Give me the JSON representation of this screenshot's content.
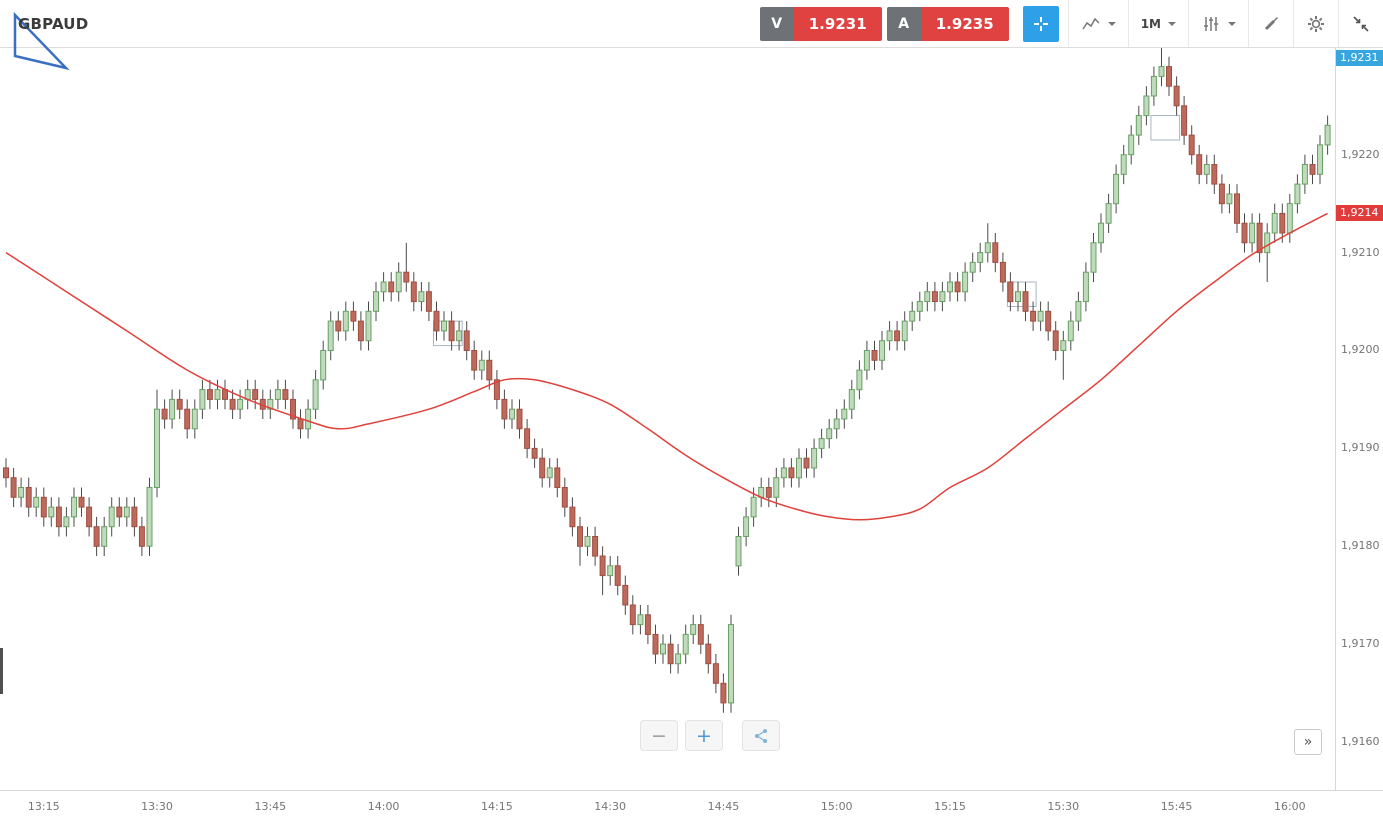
{
  "toolbar": {
    "symbol": "GBPAUD",
    "sell": {
      "label": "V",
      "price": "1.9231"
    },
    "buy": {
      "label": "A",
      "price": "1.9235"
    },
    "timeframe": "1M",
    "icons": {
      "crosshair": "crosshair",
      "chart_type": "line-chart",
      "indicators": "sliders",
      "drawing": "brush",
      "settings": "gear",
      "collapse": "collapse-arrows",
      "logo": "triangle-logo"
    }
  },
  "controls": {
    "zoom_out": "−",
    "zoom_in": "+",
    "more": "»"
  },
  "chart_data": {
    "type": "candlestick",
    "symbol": "GBPAUD",
    "interval": "1M",
    "start_time": "13:10",
    "interval_minutes": 1,
    "ylim": [
      1.91551,
      1.92309
    ],
    "grid": false,
    "colors": {
      "up_fill": "#c0dabc",
      "up_stroke": "#699f65",
      "down_fill": "#bd695c",
      "down_stroke": "#9d4f44",
      "wick": "#4a4a4a"
    },
    "y_ticks": [
      {
        "v": 1.922,
        "label": "1,9220"
      },
      {
        "v": 1.921,
        "label": "1,9210"
      },
      {
        "v": 1.92,
        "label": "1,9200"
      },
      {
        "v": 1.919,
        "label": "1,9190"
      },
      {
        "v": 1.918,
        "label": "1,9180"
      },
      {
        "v": 1.917,
        "label": "1,9170"
      },
      {
        "v": 1.916,
        "label": "1,9160"
      }
    ],
    "x_ticks": [
      {
        "i": 5,
        "label": "13:15"
      },
      {
        "i": 20,
        "label": "13:30"
      },
      {
        "i": 35,
        "label": "13:45"
      },
      {
        "i": 50,
        "label": "14:00"
      },
      {
        "i": 65,
        "label": "14:15"
      },
      {
        "i": 80,
        "label": "14:30"
      },
      {
        "i": 95,
        "label": "14:45"
      },
      {
        "i": 110,
        "label": "15:00"
      },
      {
        "i": 125,
        "label": "15:15"
      },
      {
        "i": 140,
        "label": "15:30"
      },
      {
        "i": 155,
        "label": "15:45"
      },
      {
        "i": 170,
        "label": "16:00"
      }
    ],
    "last_price_label": {
      "v": 1.9231,
      "label": "1,9231",
      "bg": "#36a6df"
    },
    "ma_price_label": {
      "v": 1.9214,
      "label": "1,9214",
      "bg": "#e23b3b"
    },
    "pattern_boxes": [
      {
        "i0": 57,
        "i1": 60,
        "top": 1.9203,
        "bottom": 1.92005
      },
      {
        "i0": 133,
        "i1": 136,
        "top": 1.9207,
        "bottom": 1.92045
      },
      {
        "i0": 152,
        "i1": 155,
        "top": 1.9224,
        "bottom": 1.92215
      }
    ],
    "ma_line": {
      "color": "#e0413a",
      "points": [
        [
          0,
          1.921
        ],
        [
          8,
          1.9206
        ],
        [
          16,
          1.9202
        ],
        [
          24,
          1.9198
        ],
        [
          32,
          1.9195
        ],
        [
          40,
          1.91928
        ],
        [
          44,
          1.9192
        ],
        [
          48,
          1.91925
        ],
        [
          56,
          1.9194
        ],
        [
          62,
          1.91958
        ],
        [
          66,
          1.9197
        ],
        [
          70,
          1.9197
        ],
        [
          75,
          1.9196
        ],
        [
          80,
          1.91945
        ],
        [
          85,
          1.9192
        ],
        [
          90,
          1.91893
        ],
        [
          95,
          1.9187
        ],
        [
          100,
          1.9185
        ],
        [
          105,
          1.91837
        ],
        [
          109,
          1.9183
        ],
        [
          113,
          1.91827
        ],
        [
          117,
          1.9183
        ],
        [
          121,
          1.91838
        ],
        [
          125,
          1.9186
        ],
        [
          130,
          1.9188
        ],
        [
          135,
          1.9191
        ],
        [
          140,
          1.9194
        ],
        [
          145,
          1.9197
        ],
        [
          150,
          1.92005
        ],
        [
          155,
          1.9204
        ],
        [
          160,
          1.9207
        ],
        [
          165,
          1.92098
        ],
        [
          170,
          1.9212
        ],
        [
          175,
          1.9214
        ]
      ]
    },
    "candles": [
      [
        1.9188,
        1.9189,
        1.9186,
        1.9187
      ],
      [
        1.9187,
        1.9188,
        1.9184,
        1.9185
      ],
      [
        1.9185,
        1.9187,
        1.9184,
        1.9186
      ],
      [
        1.9186,
        1.9187,
        1.9183,
        1.9184
      ],
      [
        1.9184,
        1.9186,
        1.9183,
        1.9185
      ],
      [
        1.9185,
        1.9186,
        1.9182,
        1.9183
      ],
      [
        1.9183,
        1.9185,
        1.9182,
        1.9184
      ],
      [
        1.9184,
        1.9185,
        1.9181,
        1.9182
      ],
      [
        1.9182,
        1.9184,
        1.9181,
        1.9183
      ],
      [
        1.9183,
        1.9186,
        1.9182,
        1.9185
      ],
      [
        1.9185,
        1.9186,
        1.9183,
        1.9184
      ],
      [
        1.9184,
        1.9185,
        1.9181,
        1.9182
      ],
      [
        1.9182,
        1.9183,
        1.9179,
        1.918
      ],
      [
        1.918,
        1.9183,
        1.9179,
        1.9182
      ],
      [
        1.9182,
        1.9185,
        1.9181,
        1.9184
      ],
      [
        1.9184,
        1.9185,
        1.9182,
        1.9183
      ],
      [
        1.9183,
        1.9185,
        1.9182,
        1.9184
      ],
      [
        1.9184,
        1.9185,
        1.9181,
        1.9182
      ],
      [
        1.9182,
        1.9183,
        1.9179,
        1.918
      ],
      [
        1.918,
        1.9187,
        1.9179,
        1.9186
      ],
      [
        1.9186,
        1.9196,
        1.9185,
        1.9194
      ],
      [
        1.9194,
        1.9195,
        1.9192,
        1.9193
      ],
      [
        1.9193,
        1.9196,
        1.9192,
        1.9195
      ],
      [
        1.9195,
        1.9196,
        1.9193,
        1.9194
      ],
      [
        1.9194,
        1.9195,
        1.9191,
        1.9192
      ],
      [
        1.9192,
        1.9195,
        1.9191,
        1.9194
      ],
      [
        1.9194,
        1.9197,
        1.9193,
        1.9196
      ],
      [
        1.9196,
        1.9197,
        1.9194,
        1.9195
      ],
      [
        1.9195,
        1.9197,
        1.9194,
        1.9196
      ],
      [
        1.9196,
        1.9197,
        1.9194,
        1.9195
      ],
      [
        1.9195,
        1.9196,
        1.9193,
        1.9194
      ],
      [
        1.9194,
        1.9196,
        1.9193,
        1.9195
      ],
      [
        1.9195,
        1.9197,
        1.9194,
        1.9196
      ],
      [
        1.9196,
        1.9197,
        1.9194,
        1.9195
      ],
      [
        1.9195,
        1.9196,
        1.9193,
        1.9194
      ],
      [
        1.9194,
        1.9196,
        1.9193,
        1.9195
      ],
      [
        1.9195,
        1.9197,
        1.9194,
        1.9196
      ],
      [
        1.9196,
        1.9197,
        1.9194,
        1.9195
      ],
      [
        1.9195,
        1.9196,
        1.9192,
        1.9193
      ],
      [
        1.9193,
        1.9194,
        1.9191,
        1.9192
      ],
      [
        1.9192,
        1.9195,
        1.9191,
        1.9194
      ],
      [
        1.9194,
        1.9198,
        1.9193,
        1.9197
      ],
      [
        1.9197,
        1.9201,
        1.9196,
        1.92
      ],
      [
        1.92,
        1.9204,
        1.9199,
        1.9203
      ],
      [
        1.9203,
        1.9204,
        1.9201,
        1.9202
      ],
      [
        1.9202,
        1.9205,
        1.9201,
        1.9204
      ],
      [
        1.9204,
        1.9205,
        1.9202,
        1.9203
      ],
      [
        1.9203,
        1.9204,
        1.92,
        1.9201
      ],
      [
        1.9201,
        1.9205,
        1.92,
        1.9204
      ],
      [
        1.9204,
        1.9207,
        1.9203,
        1.9206
      ],
      [
        1.9206,
        1.9208,
        1.9205,
        1.9207
      ],
      [
        1.9207,
        1.9208,
        1.9205,
        1.9206
      ],
      [
        1.9206,
        1.9209,
        1.9205,
        1.9208
      ],
      [
        1.9208,
        1.9211,
        1.9206,
        1.9207
      ],
      [
        1.9207,
        1.9208,
        1.9204,
        1.9205
      ],
      [
        1.9205,
        1.9207,
        1.9204,
        1.9206
      ],
      [
        1.9206,
        1.9207,
        1.9203,
        1.9204
      ],
      [
        1.9204,
        1.9205,
        1.9201,
        1.9202
      ],
      [
        1.9202,
        1.9204,
        1.9201,
        1.9203
      ],
      [
        1.9203,
        1.9204,
        1.92,
        1.9201
      ],
      [
        1.9201,
        1.9203,
        1.92,
        1.9202
      ],
      [
        1.9202,
        1.9203,
        1.9199,
        1.92
      ],
      [
        1.92,
        1.9201,
        1.9197,
        1.9198
      ],
      [
        1.9198,
        1.92,
        1.9197,
        1.9199
      ],
      [
        1.9199,
        1.92,
        1.9196,
        1.9197
      ],
      [
        1.9197,
        1.9198,
        1.9194,
        1.9195
      ],
      [
        1.9195,
        1.9196,
        1.9192,
        1.9193
      ],
      [
        1.9193,
        1.9195,
        1.9192,
        1.9194
      ],
      [
        1.9194,
        1.9195,
        1.9191,
        1.9192
      ],
      [
        1.9192,
        1.9193,
        1.9189,
        1.919
      ],
      [
        1.919,
        1.9191,
        1.9188,
        1.9189
      ],
      [
        1.9189,
        1.919,
        1.9186,
        1.9187
      ],
      [
        1.9187,
        1.9189,
        1.9186,
        1.9188
      ],
      [
        1.9188,
        1.9189,
        1.9185,
        1.9186
      ],
      [
        1.9186,
        1.9187,
        1.9183,
        1.9184
      ],
      [
        1.9184,
        1.9185,
        1.9181,
        1.9182
      ],
      [
        1.9182,
        1.9183,
        1.9178,
        1.918
      ],
      [
        1.918,
        1.9182,
        1.9179,
        1.9181
      ],
      [
        1.9181,
        1.9182,
        1.9178,
        1.9179
      ],
      [
        1.9179,
        1.918,
        1.9175,
        1.9177
      ],
      [
        1.9177,
        1.9179,
        1.9176,
        1.9178
      ],
      [
        1.9178,
        1.9179,
        1.9175,
        1.9176
      ],
      [
        1.9176,
        1.9177,
        1.9173,
        1.9174
      ],
      [
        1.9174,
        1.9175,
        1.9171,
        1.9172
      ],
      [
        1.9172,
        1.9174,
        1.9171,
        1.9173
      ],
      [
        1.9173,
        1.9174,
        1.917,
        1.9171
      ],
      [
        1.9171,
        1.9172,
        1.9168,
        1.9169
      ],
      [
        1.9169,
        1.9171,
        1.9168,
        1.917
      ],
      [
        1.917,
        1.9171,
        1.9167,
        1.9168
      ],
      [
        1.9168,
        1.917,
        1.9167,
        1.9169
      ],
      [
        1.9169,
        1.9172,
        1.9168,
        1.9171
      ],
      [
        1.9171,
        1.9173,
        1.917,
        1.9172
      ],
      [
        1.9172,
        1.9173,
        1.9169,
        1.917
      ],
      [
        1.917,
        1.9171,
        1.9167,
        1.9168
      ],
      [
        1.9168,
        1.9169,
        1.9165,
        1.9166
      ],
      [
        1.9166,
        1.9167,
        1.9163,
        1.9164
      ],
      [
        1.9164,
        1.9173,
        1.9163,
        1.9172
      ],
      [
        1.9178,
        1.9182,
        1.9177,
        1.9181
      ],
      [
        1.9181,
        1.9184,
        1.918,
        1.9183
      ],
      [
        1.9183,
        1.9186,
        1.9182,
        1.9185
      ],
      [
        1.9185,
        1.9187,
        1.9184,
        1.9186
      ],
      [
        1.9186,
        1.9187,
        1.9184,
        1.9185
      ],
      [
        1.9185,
        1.9188,
        1.9184,
        1.9187
      ],
      [
        1.9187,
        1.9189,
        1.9186,
        1.9188
      ],
      [
        1.9188,
        1.9189,
        1.9186,
        1.9187
      ],
      [
        1.9187,
        1.919,
        1.9186,
        1.9189
      ],
      [
        1.9189,
        1.919,
        1.9187,
        1.9188
      ],
      [
        1.9188,
        1.9191,
        1.9187,
        1.919
      ],
      [
        1.919,
        1.9192,
        1.9189,
        1.9191
      ],
      [
        1.9191,
        1.9193,
        1.919,
        1.9192
      ],
      [
        1.9192,
        1.9194,
        1.9191,
        1.9193
      ],
      [
        1.9193,
        1.9195,
        1.9192,
        1.9194
      ],
      [
        1.9194,
        1.9197,
        1.9193,
        1.9196
      ],
      [
        1.9196,
        1.9199,
        1.9195,
        1.9198
      ],
      [
        1.9198,
        1.9201,
        1.9197,
        1.92
      ],
      [
        1.92,
        1.9201,
        1.9198,
        1.9199
      ],
      [
        1.9199,
        1.9202,
        1.9198,
        1.9201
      ],
      [
        1.9201,
        1.9203,
        1.92,
        1.9202
      ],
      [
        1.9202,
        1.9203,
        1.92,
        1.9201
      ],
      [
        1.9201,
        1.9204,
        1.92,
        1.9203
      ],
      [
        1.9203,
        1.9205,
        1.9202,
        1.9204
      ],
      [
        1.9204,
        1.9206,
        1.9203,
        1.9205
      ],
      [
        1.9205,
        1.9207,
        1.9204,
        1.9206
      ],
      [
        1.9206,
        1.9207,
        1.9204,
        1.9205
      ],
      [
        1.9205,
        1.9207,
        1.9204,
        1.9206
      ],
      [
        1.9206,
        1.9208,
        1.9205,
        1.9207
      ],
      [
        1.9207,
        1.9208,
        1.9205,
        1.9206
      ],
      [
        1.9206,
        1.9209,
        1.9205,
        1.9208
      ],
      [
        1.9208,
        1.921,
        1.9207,
        1.9209
      ],
      [
        1.9209,
        1.9211,
        1.9208,
        1.921
      ],
      [
        1.921,
        1.9213,
        1.9209,
        1.9211
      ],
      [
        1.9211,
        1.9212,
        1.9208,
        1.9209
      ],
      [
        1.9209,
        1.921,
        1.9206,
        1.9207
      ],
      [
        1.9207,
        1.9208,
        1.9204,
        1.9205
      ],
      [
        1.9205,
        1.9207,
        1.9204,
        1.9206
      ],
      [
        1.9206,
        1.9207,
        1.9203,
        1.9204
      ],
      [
        1.9204,
        1.9205,
        1.9202,
        1.9203
      ],
      [
        1.9203,
        1.9205,
        1.9202,
        1.9204
      ],
      [
        1.9204,
        1.9205,
        1.9201,
        1.9202
      ],
      [
        1.9202,
        1.9203,
        1.9199,
        1.92
      ],
      [
        1.92,
        1.9202,
        1.9197,
        1.9201
      ],
      [
        1.9201,
        1.9204,
        1.92,
        1.9203
      ],
      [
        1.9203,
        1.9206,
        1.9202,
        1.9205
      ],
      [
        1.9205,
        1.9209,
        1.9204,
        1.9208
      ],
      [
        1.9208,
        1.9212,
        1.9207,
        1.9211
      ],
      [
        1.9211,
        1.9214,
        1.921,
        1.9213
      ],
      [
        1.9213,
        1.9216,
        1.9212,
        1.9215
      ],
      [
        1.9215,
        1.9219,
        1.9214,
        1.9218
      ],
      [
        1.9218,
        1.9221,
        1.9217,
        1.922
      ],
      [
        1.922,
        1.9223,
        1.9219,
        1.9222
      ],
      [
        1.9222,
        1.9225,
        1.9221,
        1.9224
      ],
      [
        1.9224,
        1.9227,
        1.9223,
        1.9226
      ],
      [
        1.9226,
        1.9229,
        1.9225,
        1.9228
      ],
      [
        1.9228,
        1.9231,
        1.9227,
        1.9229
      ],
      [
        1.9229,
        1.923,
        1.9226,
        1.9227
      ],
      [
        1.9227,
        1.9228,
        1.9224,
        1.9225
      ],
      [
        1.9225,
        1.9226,
        1.9221,
        1.9222
      ],
      [
        1.9222,
        1.9223,
        1.9219,
        1.922
      ],
      [
        1.922,
        1.9221,
        1.9217,
        1.9218
      ],
      [
        1.9218,
        1.922,
        1.9217,
        1.9219
      ],
      [
        1.9219,
        1.922,
        1.9216,
        1.9217
      ],
      [
        1.9217,
        1.9218,
        1.9214,
        1.9215
      ],
      [
        1.9215,
        1.9217,
        1.9214,
        1.9216
      ],
      [
        1.9216,
        1.9217,
        1.9212,
        1.9213
      ],
      [
        1.9213,
        1.9214,
        1.921,
        1.9211
      ],
      [
        1.9211,
        1.9214,
        1.921,
        1.9213
      ],
      [
        1.9213,
        1.9214,
        1.9209,
        1.921
      ],
      [
        1.921,
        1.9213,
        1.9207,
        1.9212
      ],
      [
        1.9212,
        1.9215,
        1.9211,
        1.9214
      ],
      [
        1.9214,
        1.9215,
        1.9211,
        1.9212
      ],
      [
        1.9212,
        1.9216,
        1.9211,
        1.9215
      ],
      [
        1.9215,
        1.9218,
        1.9214,
        1.9217
      ],
      [
        1.9217,
        1.922,
        1.9216,
        1.9219
      ],
      [
        1.9219,
        1.922,
        1.9217,
        1.9218
      ],
      [
        1.9218,
        1.9222,
        1.9217,
        1.9221
      ],
      [
        1.9221,
        1.9224,
        1.922,
        1.9223
      ]
    ]
  }
}
